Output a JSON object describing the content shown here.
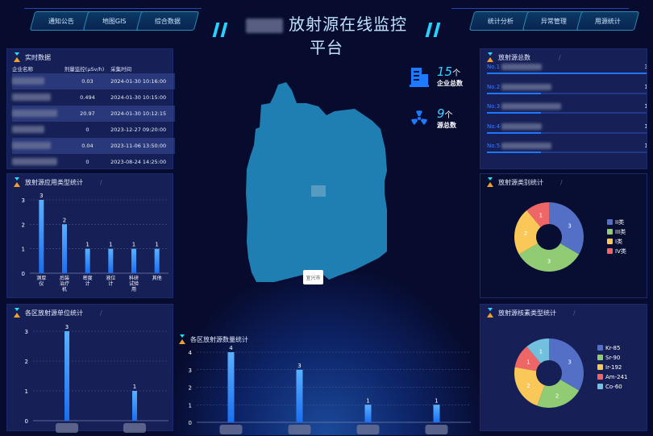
{
  "header": {
    "title": "放射源在线监控平台",
    "nav_left": [
      "通知公告",
      "地图GIS",
      "综合数据"
    ],
    "nav_right": [
      "统计分析",
      "异常管理",
      "用源统计"
    ]
  },
  "realtime": {
    "title": "实时数据",
    "columns": [
      "企业名称",
      "剂量监控(μSv/h)",
      "采集时间"
    ],
    "rows": [
      {
        "dose": "0.03",
        "time": "2024-01-30 10:16:00"
      },
      {
        "dose": "0.494",
        "time": "2024-01-30 10:15:00"
      },
      {
        "dose": "20.97",
        "time": "2024-01-30 10:12:15"
      },
      {
        "dose": "0",
        "time": "2023-12-27 09:20:00"
      },
      {
        "dose": "0.04",
        "time": "2023-11-06 13:50:00"
      },
      {
        "dose": "0",
        "time": "2023-08-24 14:25:00"
      }
    ]
  },
  "stats": {
    "companies": {
      "value": "15",
      "unit": "个",
      "label": "企业总数",
      "icon": "building-icon"
    },
    "sources": {
      "value": "9",
      "unit": "个",
      "label": "源总数",
      "icon": "radiation-icon"
    }
  },
  "map": {
    "label": "宜兴市",
    "fill": "#1f7fb3"
  },
  "ranking": {
    "title": "放射源总数",
    "items": [
      {
        "no": "No.1",
        "value": "3",
        "fraction": 1
      },
      {
        "no": "No.2",
        "value": "1",
        "fraction": 0.333
      },
      {
        "no": "No.3",
        "value": "1",
        "fraction": 0.333
      },
      {
        "no": "No.4",
        "value": "1",
        "fraction": 0.333
      },
      {
        "no": "No.5",
        "value": "1",
        "fraction": 0.333
      }
    ]
  },
  "colors": {
    "bar_top": "#5ab0ff",
    "bar_bottom": "#1a6ff0",
    "pie": [
      "#5470c6",
      "#91cc75",
      "#fac858",
      "#ee6666",
      "#73c0de"
    ]
  },
  "chart_data": [
    {
      "type": "bar",
      "title": "放射源应用类型统计",
      "categories": [
        "测厚仪",
        "后装治疗机",
        "密度计",
        "液位计",
        "科研试验用",
        "其他"
      ],
      "values": [
        3,
        2,
        1,
        1,
        1,
        1
      ],
      "ylim": [
        0,
        3
      ],
      "yticks": [
        "0",
        "1",
        "2",
        "3"
      ]
    },
    {
      "type": "bar",
      "title": "各区放射源单位统计",
      "categories": [
        "",
        ""
      ],
      "values": [
        3,
        1
      ],
      "ylim": [
        0,
        3
      ],
      "yticks": [
        "0",
        "1",
        "2",
        "3"
      ]
    },
    {
      "type": "bar",
      "title": "各区放射源数量统计",
      "categories": [
        "",
        "",
        "",
        ""
      ],
      "values": [
        4,
        3,
        1,
        1
      ],
      "ylim": [
        0,
        4
      ],
      "yticks": [
        "0",
        "1",
        "2",
        "3",
        "4"
      ]
    },
    {
      "type": "pie",
      "title": "放射源类别统计",
      "labels": [
        "II类",
        "III类",
        "I类",
        "IV类"
      ],
      "values": [
        3,
        3,
        2,
        1
      ],
      "legend": "right"
    },
    {
      "type": "pie",
      "title": "放射源核素类型统计",
      "labels": [
        "Kr-85",
        "Sr-90",
        "Ir-192",
        "Am-241",
        "Co-60"
      ],
      "values": [
        3,
        2,
        2,
        1,
        1
      ],
      "legend": "right"
    }
  ]
}
